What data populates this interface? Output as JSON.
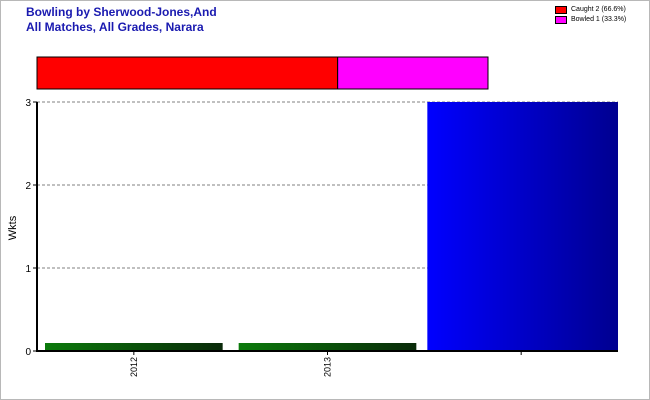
{
  "title": {
    "line1": "Bowling by Sherwood-Jones,And",
    "line2": "All Matches, All Grades, Narara"
  },
  "legend": [
    {
      "label": "Caught 2 (66.6%)",
      "color": "#ff0000"
    },
    {
      "label": "Bowled 1 (33.3%)",
      "color": "#ff00ff"
    }
  ],
  "colors": {
    "title": "#1a1ab0",
    "green_light": "#0b7a0b",
    "green_dark": "#0a2a0a",
    "blue_light": "#0000ff",
    "blue_dark": "#000090",
    "grid": "#808080"
  },
  "chart_data": {
    "type": "bar",
    "categories": [
      "2012",
      "2013",
      ""
    ],
    "values": [
      0,
      0,
      3
    ],
    "ylabel": "Wkts",
    "xlabel": "",
    "ylim": [
      0,
      3
    ],
    "yticks": [
      0,
      1,
      2,
      3
    ],
    "grid": true,
    "breakdown": [
      {
        "name": "Caught",
        "value": 2
      },
      {
        "name": "Bowled",
        "value": 1
      }
    ]
  }
}
